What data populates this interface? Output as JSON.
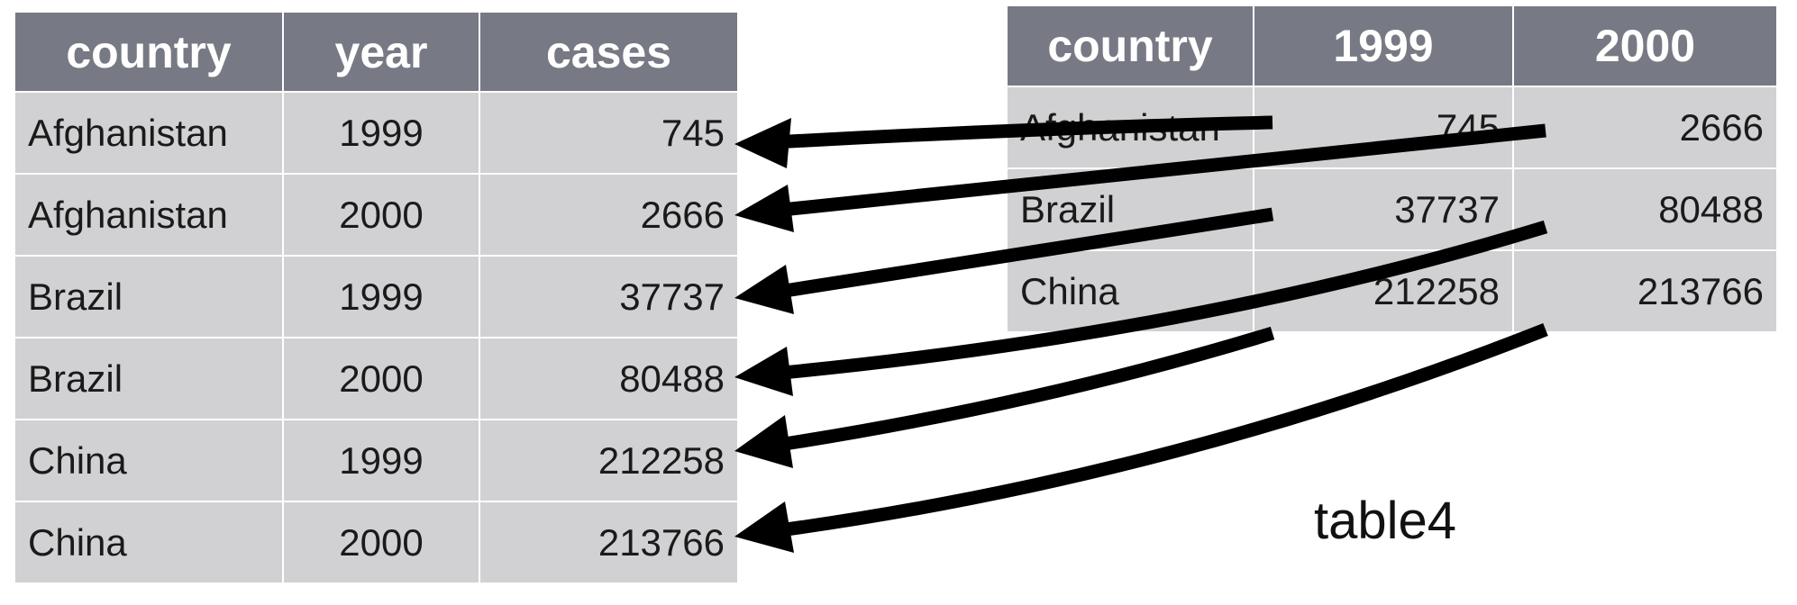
{
  "long_table": {
    "columns": [
      "country",
      "year",
      "cases"
    ],
    "rows": [
      [
        "Afghanistan",
        "1999",
        "745"
      ],
      [
        "Afghanistan",
        "2000",
        "2666"
      ],
      [
        "Brazil",
        "1999",
        "37737"
      ],
      [
        "Brazil",
        "2000",
        "80488"
      ],
      [
        "China",
        "1999",
        "212258"
      ],
      [
        "China",
        "2000",
        "213766"
      ]
    ]
  },
  "wide_table": {
    "caption": "table4",
    "columns": [
      "country",
      "1999",
      "2000"
    ],
    "rows": [
      [
        "Afghanistan",
        "745",
        "2666"
      ],
      [
        "Brazil",
        "37737",
        "80488"
      ],
      [
        "China",
        "212258",
        "213766"
      ]
    ]
  },
  "colors": {
    "header_bg": "#777a84",
    "cell_bg": "#d1d1d3",
    "arrow": "#000000"
  }
}
